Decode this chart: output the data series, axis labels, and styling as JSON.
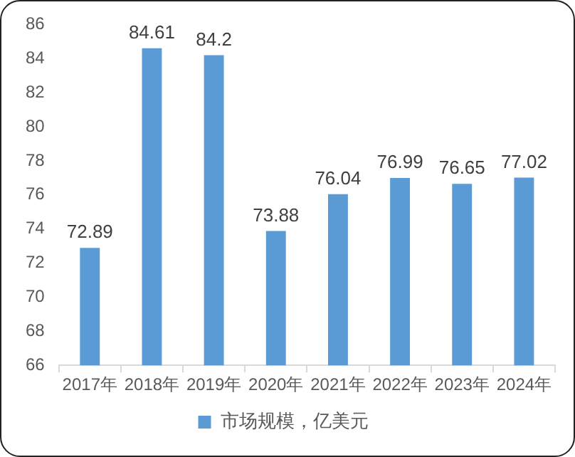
{
  "chart_data": {
    "type": "bar",
    "categories": [
      "2017年",
      "2018年",
      "2019年",
      "2020年",
      "2021年",
      "2022年",
      "2023年",
      "2024年"
    ],
    "series": [
      {
        "name": "市场规模，亿美元",
        "color": "#5b9bd5",
        "values": [
          72.89,
          84.61,
          84.2,
          73.88,
          76.04,
          76.99,
          76.65,
          77.02
        ]
      }
    ],
    "ylim": [
      66,
      86
    ],
    "yticks": [
      66,
      68,
      70,
      72,
      74,
      76,
      78,
      80,
      82,
      84,
      86
    ],
    "data_labels": true,
    "legend": "bottom",
    "grid": false
  }
}
